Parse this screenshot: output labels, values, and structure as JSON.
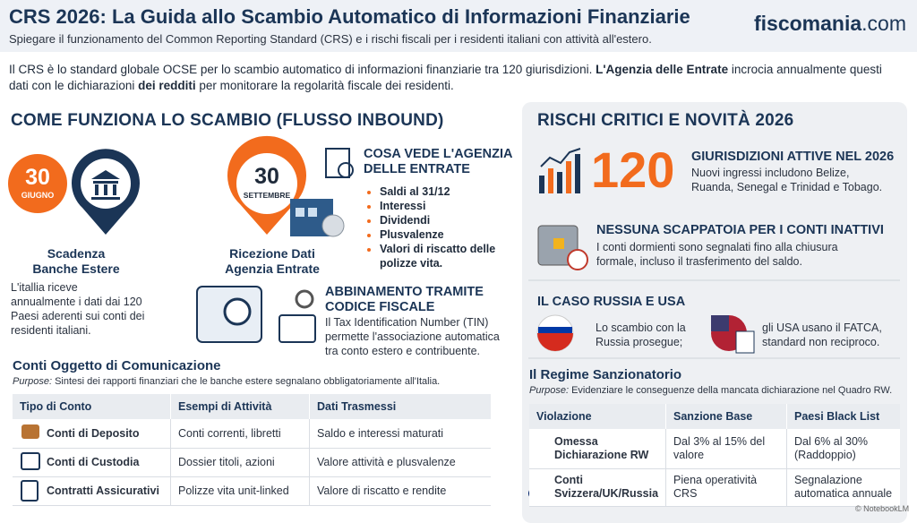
{
  "header": {
    "title": "CRS 2026: La Guida allo Scambio Automatico di Informazioni Finanziarie",
    "subtitle": "Spiegare il funzionamento del Common Reporting Standard (CRS) e i rischi fiscali per i residenti italiani con attività all'estero.",
    "brand_name": "fiscomania",
    "brand_suffix": ".com"
  },
  "intro": [
    "Il CRS è lo standard globale OCSE per lo scambio automatico di informazioni finanziarie tra 120 giurisdizioni. ",
    "L'Agenzia delle Entrate",
    " incrocia annualmente questi dati con le dichiarazioni ",
    "dei redditi",
    " per monitorare la regolarità fiscale dei residenti."
  ],
  "left": {
    "title": "COME FUNZIONA LO SCAMBIO (FLUSSO INBOUND)",
    "step1": {
      "day": "30",
      "month": "GIUGNO",
      "label": "Scadenza Banche Estere",
      "description": "L'itallia riceve annualmente i dati dai 120 Paesi aderenti sui conti dei residenti italiani."
    },
    "step2": {
      "day": "30",
      "month": "SETTEMBRE",
      "label": "Ricezione Dati Agenzia Entrate"
    },
    "agency": {
      "title": "COSA VEDE L'AGENZIA DELLE ENTRATE",
      "items": [
        "Saldi al 31/12",
        "Interessi",
        "Dividendi",
        "Plusvalenze",
        "Valori di riscatto delle polizze vita."
      ]
    },
    "matching": {
      "title": "ABBINAMENTO TRAMITE CODICE FISCALE",
      "text": "Il Tax Identification Number (TIN) permette l'associazione automatica tra conto estero e contribuente."
    },
    "accounts": {
      "title": "Conti Oggetto di Comunicazione",
      "purpose_label": "Purpose:",
      "purpose": "Sintesi dei rapporti finanziari che le banche estere segnalano obbligatoriamente all'Italia.",
      "headers": [
        "Tipo di Conto",
        "Esempi di Attività",
        "Dati Trasmessi"
      ],
      "rows": [
        [
          "Conti di Deposito",
          "Conti correnti, libretti",
          "Saldo e interessi maturati"
        ],
        [
          "Conti di Custodia",
          "Dossier titoli, azioni",
          "Valore attività e plusvalenze"
        ],
        [
          "Contratti Assicurativi",
          "Polizze vita unit-linked",
          "Valore di riscatto e rendite"
        ]
      ]
    }
  },
  "right": {
    "title": "RISCHI CRITICI E NOVITÀ 2026",
    "stat": {
      "number": 120,
      "title": "GIURISDIZIONI ATTIVE NEL 2026",
      "text": "Nuovi ingressi includono Belize, Ruanda, Senegal e Trinidad e Tobago."
    },
    "inactive": {
      "title": "NESSUNA SCAPPATOIA PER I CONTI INATTIVI",
      "text": "I conti dormienti sono segnalati fino alla chiusura formale, incluso il trasferimento del saldo."
    },
    "russia_usa": {
      "title": "IL CASO RUSSIA E USA",
      "russia": "Lo scambio con la Russia prosegue;",
      "usa": "gli USA usano il FATCA, standard non reciproco."
    },
    "sanctions": {
      "title": "Il Regime Sanzionatorio",
      "purpose_label": "Purpose:",
      "purpose": "Evidenziare le conseguenze della mancata dichiarazione nel Quadro RW.",
      "headers": [
        "Violazione",
        "Sanzione Base",
        "Paesi Black List"
      ],
      "rows": [
        [
          "Omessa Dichiarazione RW",
          "Dal 3% al 15% del valore",
          "Dal 6% al 30% (Raddoppio)"
        ],
        [
          "Conti Svizzera/UK/Russia",
          "Piena operatività CRS",
          "Segnalazione automatica annuale"
        ]
      ]
    }
  },
  "footer": "© NotebookLM"
}
